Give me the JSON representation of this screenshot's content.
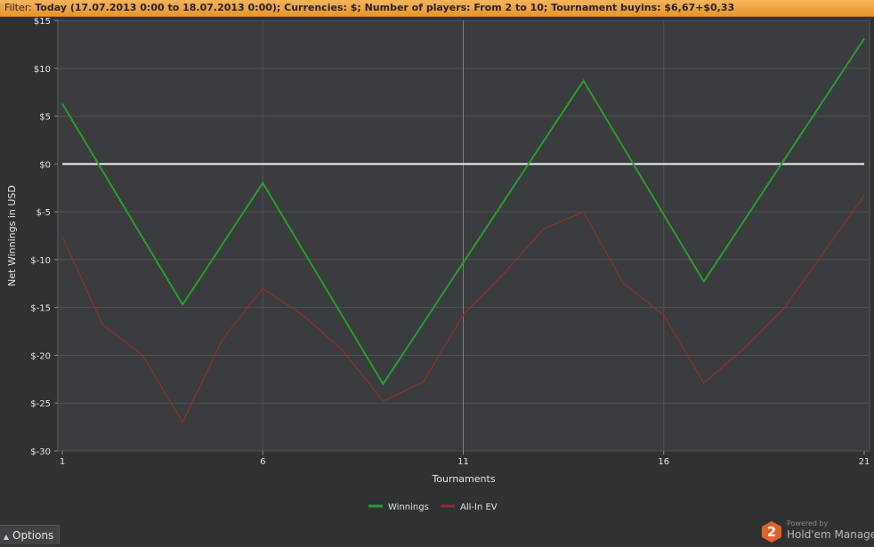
{
  "filter": {
    "label": "Filter: ",
    "value": "Today (17.07.2013 0:00 to 18.07.2013 0:00); Currencies: $; Number of players: From 2 to 10; Tournament buyins: $6,67+$0,33"
  },
  "colors": {
    "winnings": "#2aa02a",
    "allin_ev": "#8e3028",
    "zero_line": "#f2f2f2",
    "plot_bg": "#3a3c3f",
    "grid": "#505356"
  },
  "chart_data": {
    "type": "line",
    "xlabel": "Tournaments",
    "ylabel": "Net Winnings in USD",
    "xlim": [
      1,
      21
    ],
    "ylim": [
      -30,
      15
    ],
    "x_ticks": [
      1,
      6,
      11,
      16,
      21
    ],
    "y_ticks": [
      15,
      10,
      5,
      0,
      -5,
      -10,
      -15,
      -20,
      -25,
      -30
    ],
    "y_tick_labels": [
      "$15",
      "$10",
      "$5",
      "$0",
      "$-5",
      "$-10",
      "$-15",
      "$-20",
      "$-25",
      "$-30"
    ],
    "grid": true,
    "legend_position": "bottom-center",
    "series": [
      {
        "name": "Winnings",
        "color": "#2aa02a",
        "x": [
          1,
          4,
          6,
          9,
          14,
          17,
          21
        ],
        "y": [
          6.3,
          -14.7,
          -2.0,
          -23.0,
          8.7,
          -12.3,
          13.1
        ]
      },
      {
        "name": "All-In EV",
        "color": "#8e3028",
        "x": [
          1,
          2,
          3,
          4,
          5,
          6,
          7,
          8,
          9,
          10,
          11,
          12,
          13,
          14,
          15,
          16,
          17,
          18,
          19,
          20,
          21
        ],
        "y": [
          -7.6,
          -16.8,
          -20.0,
          -27.0,
          -18.3,
          -13.0,
          -15.8,
          -19.5,
          -24.8,
          -22.8,
          -15.8,
          -11.5,
          -6.8,
          -5.0,
          -12.5,
          -15.8,
          -22.9,
          -19.3,
          -15.1,
          -9.2,
          -3.3
        ]
      }
    ]
  },
  "options_label": "Options",
  "brand": {
    "logo_text": "2",
    "powered_by": "Powered by",
    "name": "Hold'em Manager"
  }
}
